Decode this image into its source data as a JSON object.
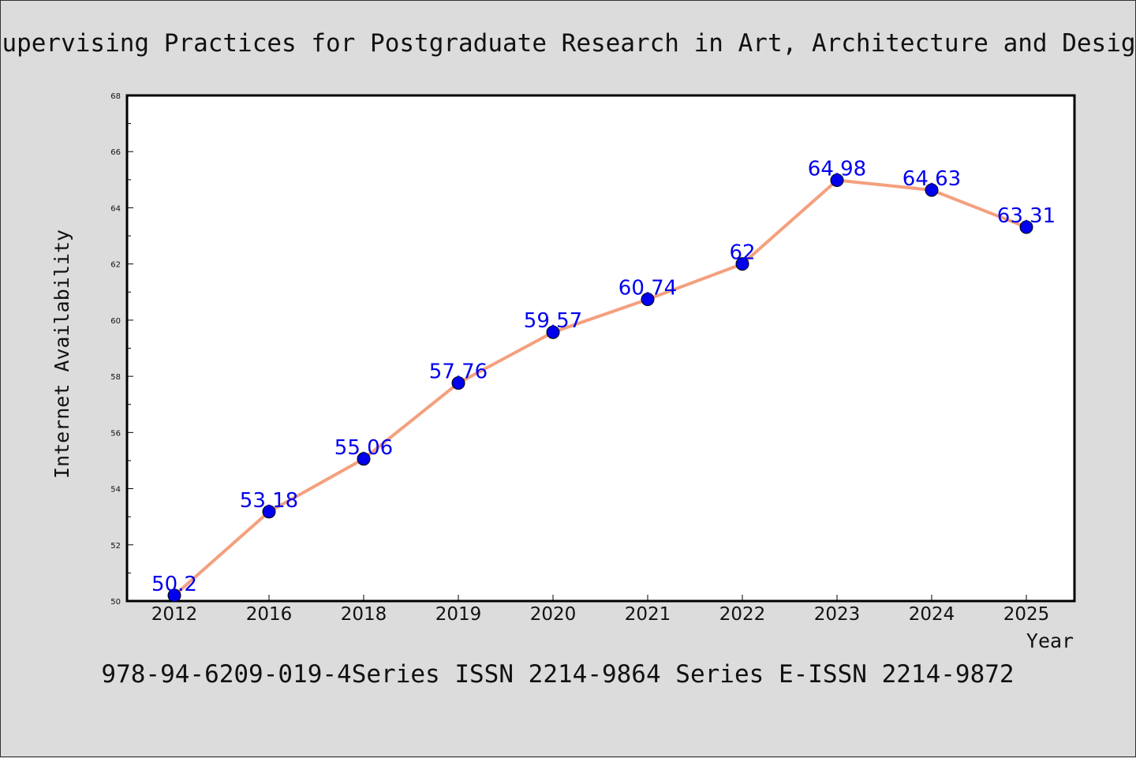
{
  "page": {
    "background": "#dcdcdc",
    "footer": "978-94-6209-019-4Series ISSN 2214-9864 Series E-ISSN 2214-9872"
  },
  "chart_data": {
    "type": "line",
    "title": "Supervising Practices for Postgraduate Research in Art, Architecture and Design",
    "xlabel": "Year",
    "ylabel": "Internet Availability",
    "categories": [
      "2012",
      "2016",
      "2018",
      "2019",
      "2020",
      "2021",
      "2022",
      "2023",
      "2024",
      "2025"
    ],
    "series": [
      {
        "values": [
          50.2,
          53.18,
          55.06,
          57.76,
          59.57,
          60.74,
          62,
          64.98,
          64.63,
          63.31
        ],
        "labels": [
          "50.2",
          "53.18",
          "55.06",
          "57.76",
          "59.57",
          "60.74",
          "62",
          "64.98",
          "64.63",
          "63.31"
        ],
        "line_color": "#f4a07e",
        "marker_color": "#0000ee",
        "label_color": "#0000ee"
      }
    ],
    "ylim": [
      50,
      68
    ],
    "yticks": [
      "50",
      "52",
      "54",
      "56",
      "58",
      "60",
      "62",
      "64",
      "66",
      "68"
    ],
    "grid": false,
    "legend": "none"
  }
}
